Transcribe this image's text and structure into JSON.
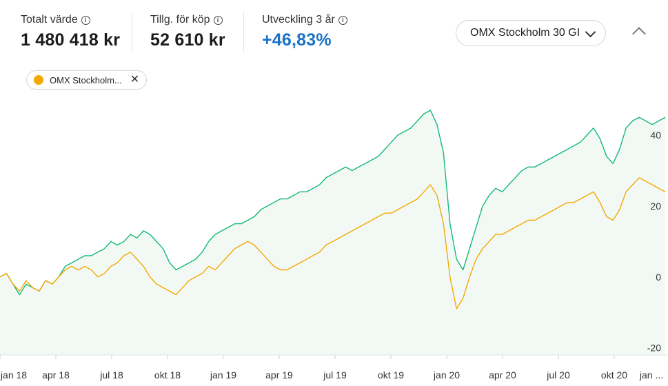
{
  "stats": {
    "total_value": {
      "label": "Totalt värde",
      "value": "1 480 418 kr"
    },
    "available": {
      "label": "Tillg. för köp",
      "value": "52 610 kr"
    },
    "development": {
      "label": "Utveckling 3 år",
      "value": "+46,83%"
    }
  },
  "index_select": {
    "value": "OMX Stockholm 30 GI"
  },
  "chip": {
    "label": "OMX Stockholm...",
    "color": "#f5a800"
  },
  "colors": {
    "portfolio": "#14b87a",
    "index": "#f5a800",
    "fill": "#f2f9f5"
  },
  "icons": {
    "info": "info-icon",
    "dropdown": "chevron-down-icon",
    "collapse": "chevron-up-icon",
    "remove": "close-icon"
  },
  "chart_data": {
    "type": "line",
    "title": "",
    "xlabel": "",
    "ylabel": "",
    "x_tick_labels": [
      "jan 18",
      "apr 18",
      "jul 18",
      "okt 18",
      "jan 19",
      "apr 19",
      "jul 19",
      "okt 19",
      "jan 20",
      "apr 20",
      "jul 20",
      "okt 20",
      "jan ..."
    ],
    "y_tick_labels": [
      "40",
      "20",
      "0",
      "-20"
    ],
    "ylim": [
      -22,
      47
    ],
    "y_axis_position": "right",
    "grid": false,
    "series": [
      {
        "name": "",
        "color": "#14b87a",
        "values": [
          0,
          1,
          -2,
          -5,
          -2,
          -3,
          -4,
          -1,
          -2,
          0,
          3,
          4,
          5,
          6,
          6,
          7,
          8,
          10,
          9,
          10,
          12,
          11,
          13,
          12,
          10,
          8,
          4,
          2,
          3,
          4,
          5,
          7,
          10,
          12,
          13,
          14,
          15,
          15,
          16,
          17,
          19,
          20,
          21,
          22,
          22,
          23,
          24,
          24,
          25,
          26,
          28,
          29,
          30,
          31,
          30,
          31,
          32,
          33,
          34,
          36,
          38,
          40,
          41,
          42,
          44,
          46,
          47,
          43,
          35,
          15,
          5,
          2,
          8,
          14,
          20,
          23,
          25,
          24,
          26,
          28,
          30,
          31,
          31,
          32,
          33,
          34,
          35,
          36,
          37,
          38,
          40,
          42,
          39,
          34,
          32,
          36,
          42,
          44,
          45,
          44,
          43,
          44,
          45
        ]
      },
      {
        "name": "",
        "color": "#f5a800",
        "values": [
          0,
          1,
          -2,
          -4,
          -1,
          -3,
          -4,
          -1,
          -2,
          0,
          2,
          3,
          2,
          3,
          2,
          0,
          1,
          3,
          4,
          6,
          7,
          5,
          3,
          0,
          -2,
          -3,
          -4,
          -5,
          -3,
          -1,
          0,
          1,
          3,
          2,
          4,
          6,
          8,
          9,
          10,
          9,
          7,
          5,
          3,
          2,
          2,
          3,
          4,
          5,
          6,
          7,
          9,
          10,
          11,
          12,
          13,
          14,
          15,
          16,
          17,
          18,
          18,
          19,
          20,
          21,
          22,
          24,
          26,
          23,
          15,
          0,
          -9,
          -6,
          0,
          5,
          8,
          10,
          12,
          12,
          13,
          14,
          15,
          16,
          16,
          17,
          18,
          19,
          20,
          21,
          21,
          22,
          23,
          24,
          21,
          17,
          16,
          19,
          24,
          26,
          28,
          27,
          26,
          25,
          24
        ]
      }
    ]
  }
}
